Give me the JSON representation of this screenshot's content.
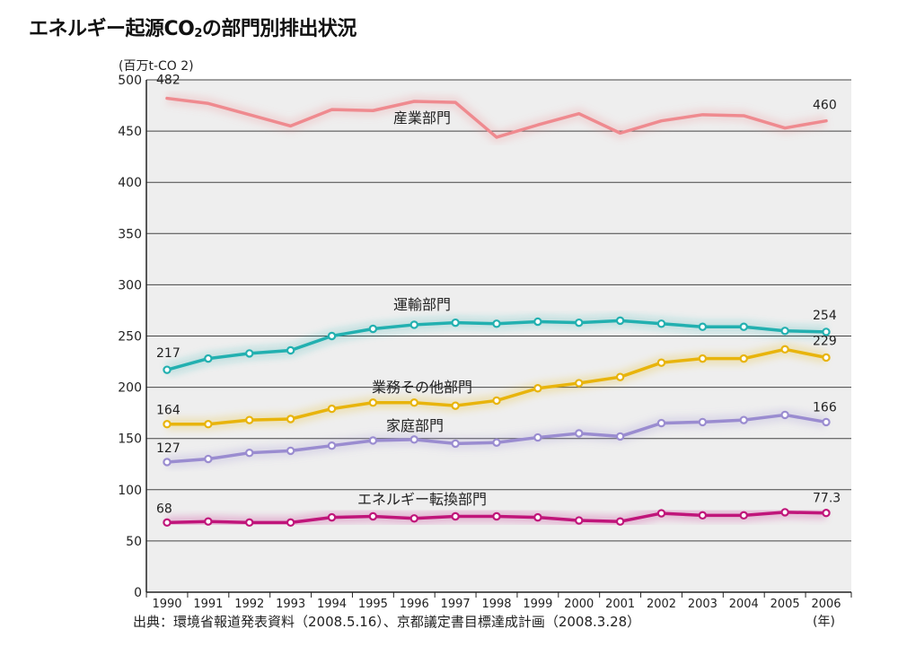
{
  "title_main": "エネルギー起源CO",
  "title_sub": "2",
  "title_rest": "の部門別排出状況",
  "source": "出典：環境省報道発表資料（2008.5.16）、京都議定書目標達成計画（2008.3.28）",
  "chart_data": {
    "type": "line",
    "ylabel": "(百万t-CO 2)",
    "xlabel": "(年)",
    "ylim": [
      0,
      500
    ],
    "yticks": [
      "0",
      "50",
      "100",
      "150",
      "200",
      "250",
      "300",
      "350",
      "400",
      "450",
      "500"
    ],
    "categories": [
      "1990",
      "1991",
      "1992",
      "1993",
      "1994",
      "1995",
      "1996",
      "1997",
      "1998",
      "1999",
      "2000",
      "2001",
      "2002",
      "2003",
      "2004",
      "2005",
      "2006"
    ],
    "grid": true,
    "series": [
      {
        "name": "産業部門",
        "color": "#ef8a8f",
        "markers": false,
        "values": [
          482,
          477,
          466,
          455,
          471,
          470,
          479,
          478,
          444,
          456,
          467,
          448,
          460,
          466,
          465,
          453,
          460
        ],
        "start_label": "482",
        "end_label": "460"
      },
      {
        "name": "運輸部門",
        "color": "#22b0b0",
        "markers": true,
        "values": [
          217,
          228,
          233,
          236,
          250,
          257,
          261,
          263,
          262,
          264,
          263,
          265,
          262,
          259,
          259,
          255,
          254
        ],
        "start_label": "217",
        "end_label": "254"
      },
      {
        "name": "業務その他部門",
        "color": "#e8b40c",
        "markers": true,
        "values": [
          164,
          164,
          168,
          169,
          179,
          185,
          185,
          182,
          187,
          199,
          204,
          210,
          224,
          228,
          228,
          237,
          229
        ],
        "start_label": "164",
        "end_label": "229"
      },
      {
        "name": "家庭部門",
        "color": "#9a8cd0",
        "markers": true,
        "values": [
          127,
          130,
          136,
          138,
          143,
          148,
          149,
          145,
          146,
          151,
          155,
          152,
          165,
          166,
          168,
          173,
          166
        ],
        "start_label": "127",
        "end_label": "166"
      },
      {
        "name": "エネルギー転換部門",
        "color": "#c0157a",
        "markers": true,
        "values": [
          68,
          69,
          68,
          68,
          73,
          74,
          72,
          74,
          74,
          73,
          70,
          69,
          77,
          75,
          75,
          78,
          77.3
        ],
        "start_label": "68",
        "end_label": "77.3"
      }
    ]
  }
}
